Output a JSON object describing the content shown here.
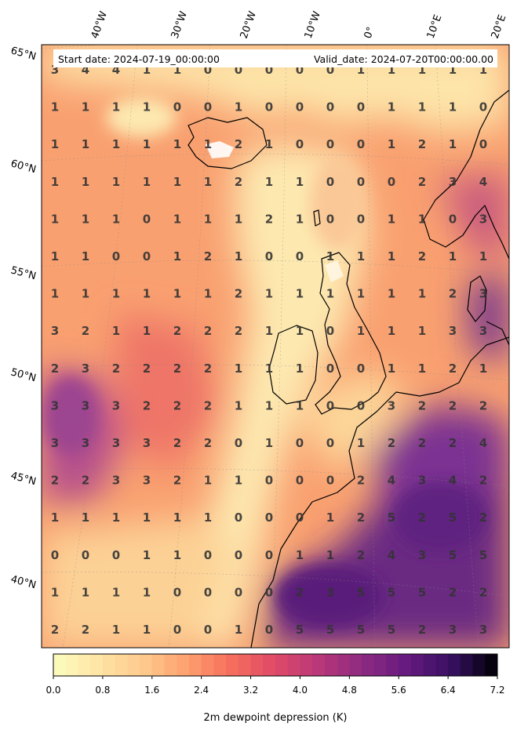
{
  "header": {
    "start_date": "Start date: 2024-07-19_00:00:00",
    "valid_date": "Valid_date: 2024-07-20T00:00:00.00"
  },
  "axes": {
    "lon_labels": [
      "40°W",
      "30°W",
      "20°W",
      "10°W",
      "0°",
      "10°E",
      "20°E"
    ],
    "lat_labels": [
      "65°N",
      "60°N",
      "55°N",
      "50°N",
      "45°N",
      "40°N"
    ]
  },
  "grid_values": [
    [
      3,
      4,
      4,
      1,
      1,
      0,
      0,
      0,
      0,
      0,
      1,
      1,
      1,
      1,
      1
    ],
    [
      1,
      1,
      1,
      1,
      0,
      0,
      1,
      0,
      0,
      0,
      0,
      1,
      1,
      1,
      0
    ],
    [
      1,
      1,
      1,
      1,
      1,
      1,
      2,
      1,
      0,
      0,
      0,
      1,
      2,
      1,
      0
    ],
    [
      1,
      1,
      1,
      1,
      1,
      1,
      2,
      1,
      1,
      0,
      0,
      0,
      2,
      3,
      4
    ],
    [
      1,
      1,
      1,
      0,
      1,
      1,
      1,
      2,
      1,
      0,
      0,
      1,
      1,
      0,
      3
    ],
    [
      1,
      1,
      0,
      0,
      1,
      2,
      1,
      0,
      0,
      1,
      1,
      1,
      2,
      1,
      1
    ],
    [
      1,
      1,
      1,
      1,
      1,
      1,
      2,
      1,
      1,
      1,
      1,
      1,
      1,
      2,
      3
    ],
    [
      3,
      2,
      1,
      1,
      2,
      2,
      2,
      1,
      1,
      0,
      1,
      1,
      1,
      3,
      3
    ],
    [
      2,
      3,
      2,
      2,
      2,
      2,
      1,
      1,
      1,
      0,
      0,
      1,
      1,
      2,
      1
    ],
    [
      3,
      3,
      3,
      2,
      2,
      2,
      1,
      1,
      1,
      0,
      0,
      3,
      2,
      2,
      2
    ],
    [
      3,
      3,
      3,
      3,
      2,
      2,
      0,
      1,
      0,
      0,
      1,
      2,
      2,
      2,
      4
    ],
    [
      2,
      2,
      3,
      3,
      2,
      1,
      1,
      0,
      0,
      0,
      2,
      4,
      3,
      4,
      2
    ],
    [
      1,
      1,
      1,
      1,
      1,
      1,
      0,
      0,
      0,
      1,
      2,
      5,
      2,
      5,
      2
    ],
    [
      0,
      0,
      0,
      1,
      1,
      0,
      0,
      0,
      1,
      1,
      2,
      4,
      3,
      5,
      5
    ],
    [
      1,
      1,
      1,
      1,
      0,
      0,
      0,
      0,
      2,
      3,
      5,
      5,
      5,
      2,
      2
    ],
    [
      2,
      2,
      1,
      1,
      0,
      0,
      1,
      0,
      5,
      5,
      5,
      5,
      2,
      3,
      3
    ]
  ],
  "colorbar": {
    "ticks": [
      "0.0",
      "0.8",
      "1.6",
      "2.4",
      "3.2",
      "4.0",
      "4.8",
      "5.6",
      "6.4",
      "7.2"
    ],
    "title": "2m dewpoint depression (K)",
    "min": 0.0,
    "max": 7.2,
    "levels": 36,
    "colormap": "magma_r"
  }
}
